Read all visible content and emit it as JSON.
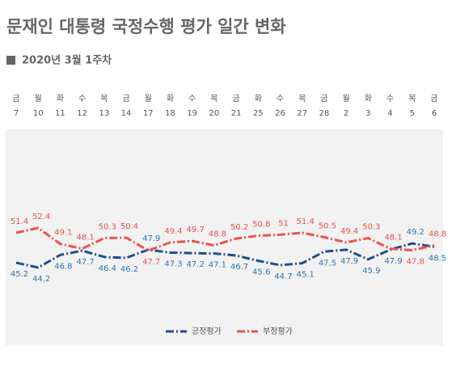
{
  "chart_data": {
    "type": "line",
    "title": "문재인 대통령 국정수행 평가 일간 변화",
    "subtitle": "2020년 3월 1주차",
    "weekdays": [
      "금",
      "월",
      "화",
      "수",
      "목",
      "금",
      "월",
      "화",
      "수",
      "목",
      "금",
      "화",
      "수",
      "목",
      "금",
      "월",
      "화",
      "수",
      "목",
      "금"
    ],
    "categories": [
      "7",
      "10",
      "11",
      "12",
      "13",
      "14",
      "17",
      "18",
      "19",
      "20",
      "21",
      "25",
      "26",
      "27",
      "28",
      "2",
      "3",
      "4",
      "5",
      "6"
    ],
    "series": [
      {
        "name": "긍정평가",
        "color": "#1f4e8c",
        "label_color": "#2f75b5",
        "values": [
          45.2,
          44.2,
          46.8,
          47.7,
          46.4,
          46.2,
          47.9,
          47.3,
          47.2,
          47.1,
          46.7,
          45.6,
          44.7,
          45.1,
          47.5,
          47.9,
          45.9,
          47.9,
          49.2,
          48.5
        ]
      },
      {
        "name": "부정평가",
        "color": "#f0504f",
        "label_color": "#e8524f",
        "values": [
          51.4,
          52.4,
          49.1,
          48.1,
          50.3,
          50.4,
          47.7,
          49.4,
          49.7,
          48.8,
          50.2,
          50.8,
          51.0,
          51.4,
          50.5,
          49.4,
          50.3,
          48.1,
          47.8,
          48.8
        ]
      }
    ]
  }
}
